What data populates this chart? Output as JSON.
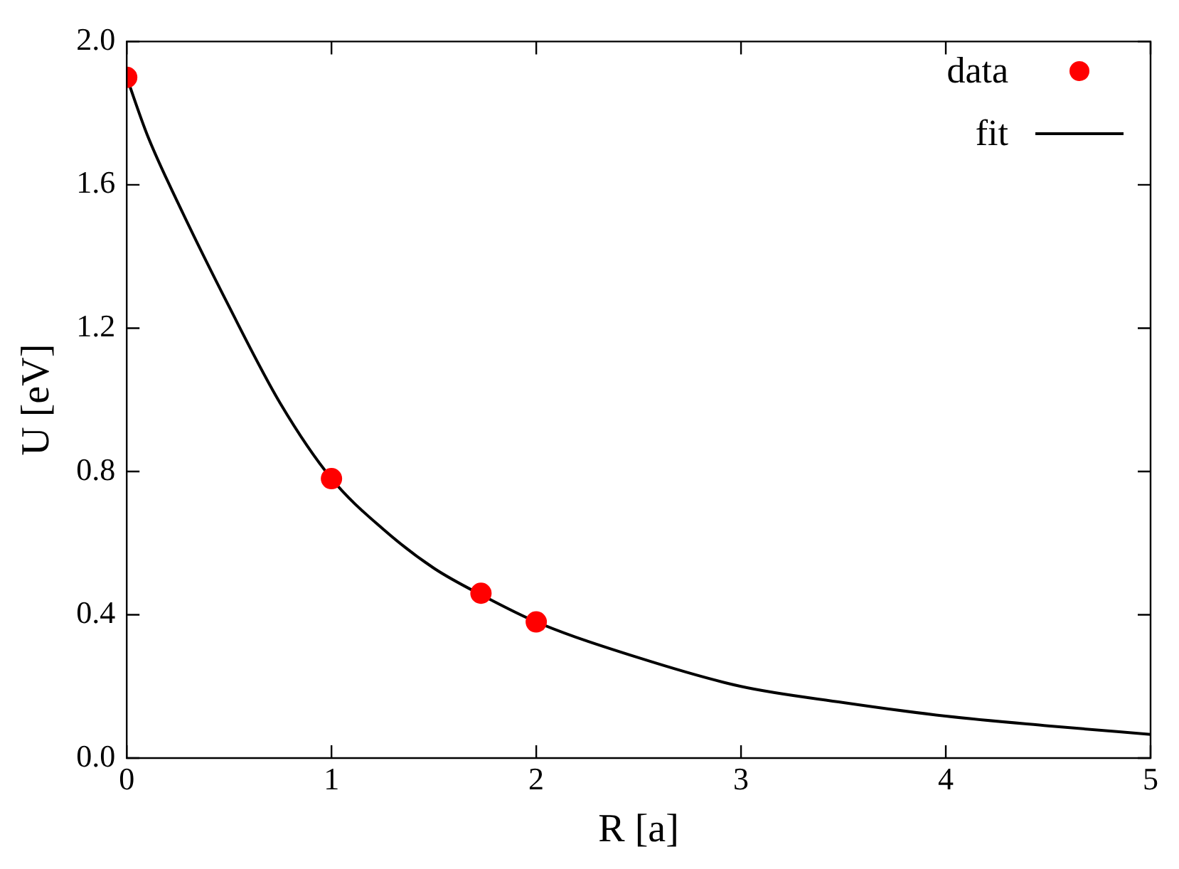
{
  "chart_data": {
    "type": "scatter",
    "xlabel": "R [a]",
    "ylabel": "U [eV]",
    "xlim": [
      0,
      5
    ],
    "xticks": [
      0,
      1,
      2,
      3,
      4,
      5
    ],
    "ylim": [
      0,
      2
    ],
    "yticks": [
      {
        "value": 0,
        "label": "0.0"
      },
      0.4,
      0.8,
      1.2,
      1.6,
      {
        "value": 2,
        "label": "2.0"
      }
    ],
    "grid": false,
    "legend": "top right",
    "series": [
      {
        "name": "data",
        "color": "#ff0000",
        "marker": "circle",
        "x": [
          0,
          1,
          1.73,
          2
        ],
        "values": [
          1.9,
          0.78,
          0.46,
          0.38
        ]
      },
      {
        "name": "fit",
        "type": "line",
        "color": "#000000",
        "marker": "none",
        "x": [
          0,
          0.1,
          0.25,
          0.5,
          0.75,
          1,
          1.25,
          1.5,
          1.75,
          2,
          2.5,
          3,
          3.5,
          4,
          4.5,
          5
        ],
        "values": [
          1.9,
          1.74,
          1.55,
          1.26,
          0.99,
          0.78,
          0.64,
          0.53,
          0.45,
          0.38,
          0.28,
          0.2,
          0.155,
          0.117,
          0.09,
          0.066
        ]
      }
    ]
  }
}
